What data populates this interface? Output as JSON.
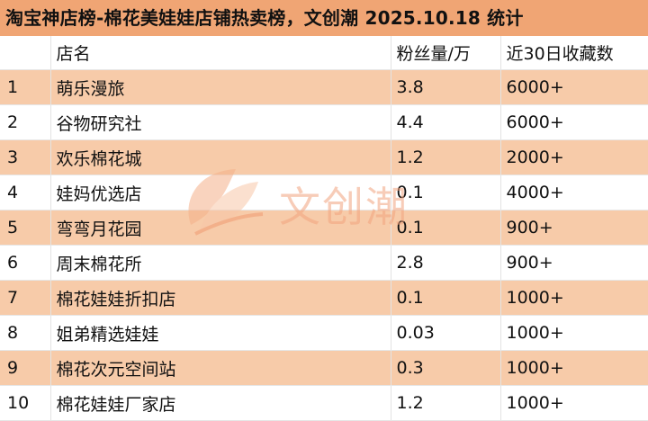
{
  "title": "淘宝神店榜-棉花美娃娃店铺热卖榜，文创潮 2025.10.18 统计",
  "headers": [
    "",
    "店名",
    "粉丝量/万",
    "近30日收藏数"
  ],
  "rows": [
    {
      "rank": "1",
      "name": "萌乐漫旅",
      "fans": "3.8",
      "fav": "6000+"
    },
    {
      "rank": "2",
      "name": "谷物研究社",
      "fans": "4.4",
      "fav": "6000+"
    },
    {
      "rank": "3",
      "name": "欢乐棉花城",
      "fans": "1.2",
      "fav": "2000+"
    },
    {
      "rank": "4",
      "name": "娃妈优选店",
      "fans": "0.1",
      "fav": "4000+"
    },
    {
      "rank": "5",
      "name": "弯弯月花园",
      "fans": "0.1",
      "fav": "900+"
    },
    {
      "rank": "6",
      "name": "周末棉花所",
      "fans": "2.8",
      "fav": "900+"
    },
    {
      "rank": "7",
      "name": "棉花娃娃折扣店",
      "fans": "0.1",
      "fav": "1000+"
    },
    {
      "rank": "8",
      "name": "姐弟精选娃娃",
      "fans": "0.03",
      "fav": "1000+"
    },
    {
      "rank": "9",
      "name": "棉花次元空间站",
      "fans": "0.3",
      "fav": "1000+"
    },
    {
      "rank": "10",
      "name": "棉花娃娃厂家店",
      "fans": "1.2",
      "fav": "1000+"
    }
  ],
  "watermark": {
    "text": "文创潮",
    "icon": "leaf-logo-icon"
  },
  "colors": {
    "title_bg": "#f0a574",
    "odd_row_bg": "#f7cba9",
    "even_row_bg": "#ffffff",
    "watermark": "#f2a47f"
  }
}
